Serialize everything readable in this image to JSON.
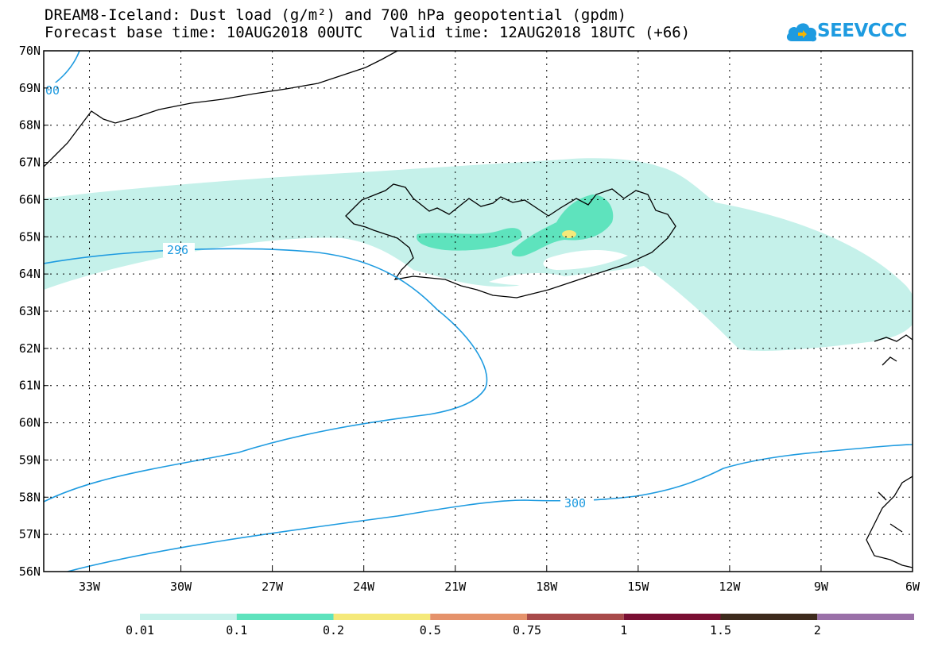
{
  "title": {
    "line1": "DREAM8-Iceland: Dust load (g/m²) and 700 hPa geopotential (gpdm)",
    "line2": "Forecast base time: 10AUG2018 00UTC   Valid time: 12AUG2018 18UTC (+66)"
  },
  "logo": {
    "text": "SEEVCCC",
    "icon": "cloud-logo-icon",
    "color": "#1e9be0"
  },
  "map": {
    "lon_range": [
      -34.5,
      -6
    ],
    "lat_range": [
      56,
      70
    ],
    "lon_ticks": [
      "33W",
      "30W",
      "27W",
      "24W",
      "21W",
      "18W",
      "15W",
      "12W",
      "9W",
      "6W"
    ],
    "lat_ticks": [
      "56N",
      "57N",
      "58N",
      "59N",
      "60N",
      "61N",
      "62N",
      "63N",
      "64N",
      "65N",
      "66N",
      "67N",
      "68N",
      "69N",
      "70N"
    ],
    "gridlines": "dotted",
    "contour_color": "#1e9be0",
    "contour_labels": [
      "296",
      "300",
      "00"
    ]
  },
  "colorbar": {
    "labels": [
      "0.01",
      "0.1",
      "0.2",
      "0.5",
      "0.75",
      "1",
      "1.5",
      "2"
    ],
    "colors": [
      "#c5f1ea",
      "#5ee3bd",
      "#f5e97a",
      "#e5926b",
      "#a84a4a",
      "#7a0f33",
      "#3d2a1c",
      "#9a70a8"
    ]
  }
}
